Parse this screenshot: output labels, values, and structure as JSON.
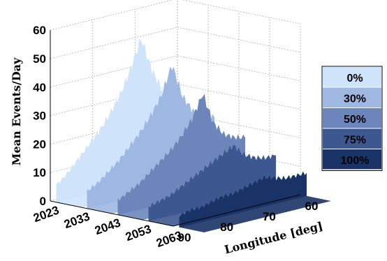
{
  "chart_data": {
    "type": "area",
    "title": "",
    "zlabel": "Mean Events/Day",
    "xlabel": "Longitude [deg]",
    "ylabel": "",
    "zlim": [
      0,
      60
    ],
    "z_ticks": [
      "0",
      "10",
      "20",
      "30",
      "40",
      "50",
      "60"
    ],
    "year_ticks": [
      "2023",
      "2033",
      "2043",
      "2053",
      "2063"
    ],
    "lon_ticks": [
      "90",
      "80",
      "70",
      "60"
    ],
    "grid": true,
    "legend_position": "right",
    "longitudes": [
      90,
      87.5,
      85,
      82.5,
      80,
      77.5,
      75,
      72.5,
      70,
      67.5,
      65,
      62.5,
      60
    ],
    "series": [
      {
        "name": "0%",
        "color": "#cfe3fb",
        "year_index": 0,
        "values": [
          6,
          9,
          13,
          17,
          21,
          26,
          32,
          40,
          50,
          38,
          30,
          27,
          25
        ]
      },
      {
        "name": "30%",
        "color": "#9fb8e2",
        "year_index": 1,
        "values": [
          6,
          8,
          11,
          14,
          18,
          22,
          27,
          33,
          43,
          31,
          25,
          22,
          21
        ]
      },
      {
        "name": "50%",
        "color": "#6c86bb",
        "year_index": 2,
        "values": [
          5,
          7,
          9,
          12,
          15,
          18,
          22,
          27,
          35,
          24,
          19,
          17,
          16
        ]
      },
      {
        "name": "75%",
        "color": "#3d5890",
        "year_index": 3,
        "values": [
          5,
          6,
          7,
          9,
          11,
          13,
          15,
          17,
          19,
          15,
          13,
          12,
          12
        ]
      },
      {
        "name": "100%",
        "color": "#1a3366",
        "year_index": 4,
        "values": [
          4,
          5,
          5,
          6,
          7,
          7,
          8,
          9,
          10,
          9,
          8,
          8,
          8
        ]
      }
    ]
  }
}
